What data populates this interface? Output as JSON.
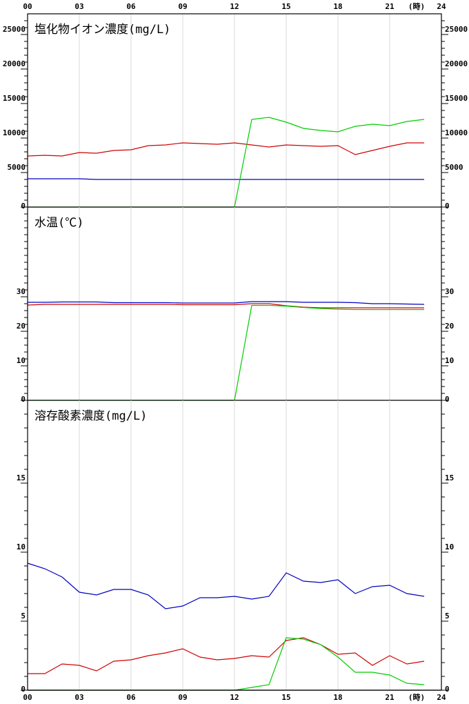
{
  "chart_data": [
    {
      "type": "line",
      "title": "塩化物イオン濃度(mg/L)",
      "x_label": "(時)",
      "x": [
        0,
        1,
        2,
        3,
        4,
        5,
        6,
        7,
        8,
        9,
        10,
        11,
        12,
        13,
        14,
        15,
        16,
        17,
        18,
        19,
        20,
        21,
        22,
        23
      ],
      "xlim": [
        0,
        24
      ],
      "xticks": [
        {
          "value": 0,
          "label": "00"
        },
        {
          "value": 3,
          "label": "03"
        },
        {
          "value": 6,
          "label": "06"
        },
        {
          "value": 9,
          "label": "09"
        },
        12,
        15,
        18,
        21,
        24
      ],
      "ylim": [
        0,
        28000
      ],
      "yticks": [
        0,
        5000,
        10000,
        15000,
        20000,
        25000
      ],
      "yticks_minor": [
        1000,
        2000,
        3000,
        4000,
        6000,
        7000,
        8000,
        9000,
        11000,
        12000,
        13000,
        14000,
        16000,
        17000,
        18000,
        19000,
        21000,
        22000,
        23000,
        24000,
        26000,
        27000
      ],
      "grid": true,
      "series": [
        {
          "color": "#d00000",
          "values": [
            7400,
            7500,
            7400,
            7900,
            7800,
            8200,
            8300,
            8900,
            9000,
            9300,
            9200,
            9100,
            9300,
            9000,
            8700,
            9000,
            8900,
            8800,
            8900,
            7600,
            8200,
            8800,
            9300,
            9300
          ]
        },
        {
          "color": "#0000c0",
          "values": [
            4100,
            4100,
            4100,
            4100,
            4000,
            4000,
            4000,
            4000,
            4000,
            4000,
            4000,
            4000,
            4000,
            4000,
            4000,
            4000,
            4000,
            4000,
            4000,
            4000,
            4000,
            4000,
            4000,
            4000
          ]
        },
        {
          "color": "#00cc00",
          "values": [
            0,
            0,
            0,
            0,
            0,
            0,
            0,
            0,
            0,
            0,
            0,
            0,
            0,
            12700,
            13000,
            12300,
            11400,
            11100,
            10900,
            11700,
            12000,
            11800,
            12400,
            12700
          ]
        }
      ]
    },
    {
      "type": "line",
      "title": "水温(℃)",
      "x": [
        0,
        1,
        2,
        3,
        4,
        5,
        6,
        7,
        8,
        9,
        10,
        11,
        12,
        13,
        14,
        15,
        16,
        17,
        18,
        19,
        20,
        21,
        22,
        23
      ],
      "xlim": [
        0,
        24
      ],
      "xticks": [
        {
          "value": 0,
          "label": "00"
        },
        {
          "value": 3,
          "label": "03"
        },
        {
          "value": 6,
          "label": "06"
        },
        {
          "value": 9,
          "label": "09"
        },
        12,
        15,
        18,
        21,
        24
      ],
      "ylim": [
        0,
        56
      ],
      "yticks": [
        0,
        10,
        20,
        30
      ],
      "yticks_minor": [
        2,
        4,
        6,
        8,
        12,
        14,
        16,
        18,
        22,
        24,
        26,
        28,
        32,
        34,
        36,
        38,
        40,
        42,
        44,
        46,
        48,
        50,
        52,
        54
      ],
      "grid": true,
      "series": [
        {
          "color": "#0000c0",
          "values": [
            28.4,
            28.4,
            28.5,
            28.5,
            28.5,
            28.3,
            28.3,
            28.3,
            28.3,
            28.2,
            28.2,
            28.2,
            28.2,
            28.6,
            28.6,
            28.6,
            28.4,
            28.4,
            28.4,
            28.3,
            28.0,
            28.0,
            27.9,
            27.8
          ]
        },
        {
          "color": "#d00000",
          "values": [
            27.6,
            27.8,
            27.8,
            27.8,
            27.8,
            27.8,
            27.8,
            27.8,
            27.8,
            27.7,
            27.7,
            27.7,
            27.7,
            28.0,
            28.0,
            27.4,
            27.0,
            26.8,
            26.8,
            26.8,
            26.8,
            26.8,
            26.8,
            26.8
          ]
        },
        {
          "color": "#00cc00",
          "values": [
            0,
            0,
            0,
            0,
            0,
            0,
            0,
            0,
            0,
            0,
            0,
            0,
            0,
            27.5,
            27.5,
            27.3,
            26.9,
            26.6,
            26.4,
            26.3,
            26.3,
            26.3,
            26.3,
            26.3
          ]
        }
      ]
    },
    {
      "type": "line",
      "title": "溶存酸素濃度(mg/L)",
      "x_label": "(時)",
      "x": [
        0,
        1,
        2,
        3,
        4,
        5,
        6,
        7,
        8,
        9,
        10,
        11,
        12,
        13,
        14,
        15,
        16,
        17,
        18,
        19,
        20,
        21,
        22,
        23
      ],
      "xlim": [
        0,
        24
      ],
      "xticks": [
        {
          "value": 0,
          "label": "00"
        },
        {
          "value": 3,
          "label": "03"
        },
        {
          "value": 6,
          "label": "06"
        },
        {
          "value": 9,
          "label": "09"
        },
        12,
        15,
        18,
        21,
        24
      ],
      "ylim": [
        0,
        21
      ],
      "yticks": [
        0,
        5,
        10,
        15
      ],
      "yticks_minor": [
        1,
        2,
        3,
        4,
        6,
        7,
        8,
        9,
        11,
        12,
        13,
        14,
        16,
        17,
        18,
        19,
        20
      ],
      "grid": true,
      "series": [
        {
          "color": "#0000c0",
          "values": [
            9.2,
            8.8,
            8.2,
            7.1,
            6.9,
            7.3,
            7.3,
            6.9,
            5.9,
            6.1,
            6.7,
            6.7,
            6.8,
            6.6,
            6.8,
            8.5,
            7.9,
            7.8,
            8.0,
            7.0,
            7.5,
            7.6,
            7.0,
            6.8
          ]
        },
        {
          "color": "#d00000",
          "values": [
            1.2,
            1.2,
            1.9,
            1.8,
            1.4,
            2.1,
            2.2,
            2.5,
            2.7,
            3.0,
            2.4,
            2.2,
            2.3,
            2.5,
            2.4,
            3.6,
            3.8,
            3.3,
            2.6,
            2.7,
            1.8,
            2.5,
            1.9,
            2.1
          ]
        },
        {
          "color": "#00cc00",
          "values": [
            0,
            0,
            0,
            0,
            0,
            0,
            0,
            0,
            0,
            0,
            0,
            0,
            0,
            0.2,
            0.4,
            3.8,
            3.7,
            3.3,
            2.4,
            1.3,
            1.3,
            1.1,
            0.5,
            0.4
          ]
        }
      ]
    }
  ]
}
